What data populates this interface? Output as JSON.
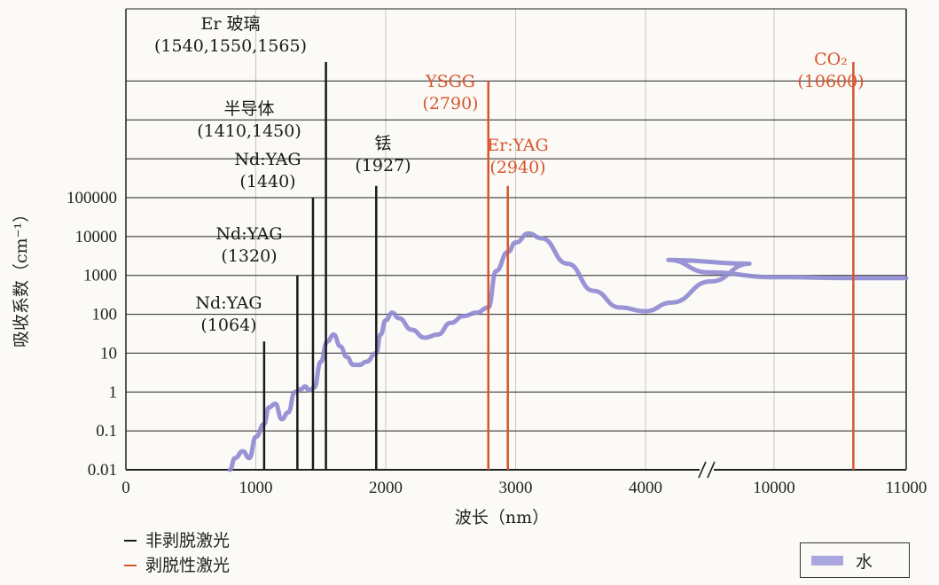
{
  "chart_data": {
    "type": "line",
    "xlabel": "波长（nm）",
    "ylabel": "吸收系数（cm⁻¹）",
    "x_axis": {
      "segments": [
        {
          "range": [
            0,
            5000
          ],
          "ticks": [
            0,
            1000,
            2000,
            3000,
            4000
          ]
        },
        {
          "range": [
            9000,
            11000
          ],
          "ticks": [
            10000,
            11000
          ]
        }
      ],
      "tick_labels": [
        "0",
        "1000",
        "2000",
        "3000",
        "4000",
        "10000",
        "11000"
      ],
      "break_marker": "//"
    },
    "y_axis": {
      "scale": "log",
      "tick_labels": [
        "0.01",
        "0.1",
        "1",
        "10",
        "100",
        "1000",
        "10000",
        "100000"
      ],
      "ylim": [
        0.01,
        100000000000
      ]
    },
    "series": [
      {
        "name": "水",
        "color": "#8e88d2",
        "points": [
          [
            800,
            0.01
          ],
          [
            840,
            0.02
          ],
          [
            900,
            0.03
          ],
          [
            950,
            0.02
          ],
          [
            1000,
            0.07
          ],
          [
            1064,
            0.15
          ],
          [
            1100,
            0.4
          ],
          [
            1150,
            0.5
          ],
          [
            1200,
            0.2
          ],
          [
            1250,
            0.3
          ],
          [
            1300,
            1.0
          ],
          [
            1350,
            1.2
          ],
          [
            1380,
            1.4
          ],
          [
            1410,
            1.1
          ],
          [
            1450,
            1.3
          ],
          [
            1500,
            6
          ],
          [
            1550,
            20
          ],
          [
            1600,
            30
          ],
          [
            1650,
            15
          ],
          [
            1700,
            8
          ],
          [
            1750,
            5
          ],
          [
            1800,
            5
          ],
          [
            1850,
            6
          ],
          [
            1927,
            10
          ],
          [
            1960,
            30
          ],
          [
            2000,
            70
          ],
          [
            2050,
            110
          ],
          [
            2100,
            80
          ],
          [
            2200,
            40
          ],
          [
            2300,
            25
          ],
          [
            2400,
            30
          ],
          [
            2500,
            60
          ],
          [
            2600,
            90
          ],
          [
            2700,
            110
          ],
          [
            2790,
            150
          ],
          [
            2850,
            1300
          ],
          [
            2940,
            4000
          ],
          [
            3000,
            7000
          ],
          [
            3100,
            12000
          ],
          [
            3200,
            9000
          ],
          [
            3400,
            2000
          ],
          [
            3600,
            400
          ],
          [
            3800,
            150
          ],
          [
            4000,
            120
          ],
          [
            4200,
            200
          ],
          [
            4500,
            700
          ],
          [
            4800,
            2000
          ],
          [
            9200,
            2500
          ],
          [
            9500,
            1200
          ],
          [
            10000,
            900
          ],
          [
            10600,
            850
          ],
          [
            11000,
            850
          ]
        ]
      }
    ],
    "lasers": [
      {
        "name": "Nd:YAG",
        "wavelength_label": "(1064)",
        "x": 1064,
        "peak": 20,
        "category": "非剥脱激光"
      },
      {
        "name": "Nd:YAG",
        "wavelength_label": "(1320)",
        "x": 1320,
        "peak": 1000,
        "category": "非剥脱激光"
      },
      {
        "name": "Nd:YAG",
        "wavelength_label": "(1440)",
        "x": 1440,
        "peak": 100000,
        "category": "非剥脱激光"
      },
      {
        "name": "半导体",
        "wavelength_label": "(1410,1450)",
        "category": "非剥脱激光"
      },
      {
        "name": "Er 玻璃",
        "wavelength_label": "(1540,1550,1565)",
        "x": 1540,
        "peak": 10000000000,
        "category": "非剥脱激光"
      },
      {
        "name": "铥",
        "wavelength_label": "(1927)",
        "x": 1927,
        "peak": 200000,
        "category": "非剥脱激光"
      },
      {
        "name": "YSGG",
        "wavelength_label": "(2790)",
        "x": 2790,
        "peak": 100000000,
        "category": "剥脱性激光"
      },
      {
        "name": "Er:YAG",
        "wavelength_label": "(2940)",
        "x": 2940,
        "peak": 200000,
        "category": "剥脱性激光"
      },
      {
        "name": "CO₂",
        "wavelength_label": "(10600)",
        "x": 10600,
        "peak": 10000000000,
        "category": "剥脱性激光"
      }
    ],
    "legend": {
      "categories": [
        {
          "label": "非剥脱激光",
          "color": "#1a1a1a"
        },
        {
          "label": "剥脱性激光",
          "color": "#d9542c"
        }
      ],
      "series_label": "水"
    },
    "grid": true
  }
}
